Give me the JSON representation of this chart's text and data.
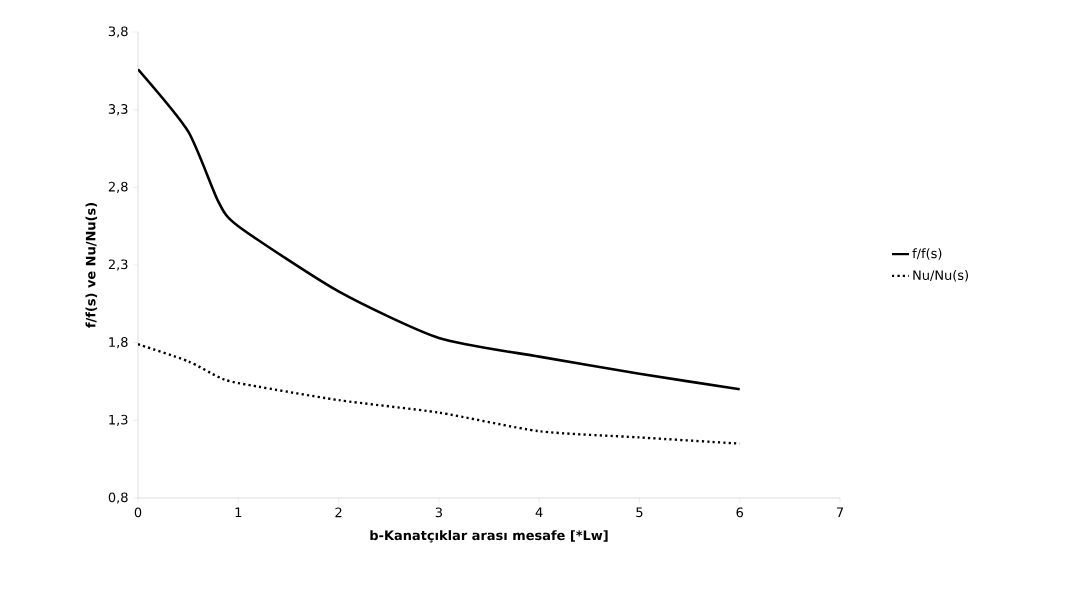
{
  "chart_data": {
    "type": "line",
    "xlabel": "b-Kanatçıklar arası mesafe [*Lw]",
    "ylabel": "f/f(s) ve Nu/Nu(s)",
    "xlim": [
      0,
      7
    ],
    "xticks": [
      0,
      1,
      2,
      3,
      4,
      5,
      6,
      7
    ],
    "ylim": [
      0.8,
      3.8
    ],
    "yticks": [
      {
        "value": 0.8,
        "label": "0,8"
      },
      {
        "value": 1.3,
        "label": "1,3"
      },
      {
        "value": 1.8,
        "label": "1,8"
      },
      {
        "value": 2.3,
        "label": "2,3"
      },
      {
        "value": 2.8,
        "label": "2,8"
      },
      {
        "value": 3.3,
        "label": "3,3"
      },
      {
        "value": 3.8,
        "label": "3,8"
      }
    ],
    "legend": "right",
    "marker": "none",
    "grid": false,
    "series": [
      {
        "name": "f/f(s)",
        "color": "#000000",
        "line_style": "solid",
        "x": [
          0,
          0.5,
          0.8,
          1,
          2,
          3,
          4,
          5,
          6
        ],
        "values": [
          3.56,
          3.16,
          2.71,
          2.55,
          2.13,
          1.83,
          1.71,
          1.6,
          1.5
        ]
      },
      {
        "name": "Nu/Nu(s)",
        "color": "#000000",
        "line_style": "dotted",
        "x": [
          0,
          0.5,
          0.8,
          1,
          2,
          3,
          4,
          5,
          6
        ],
        "values": [
          1.79,
          1.68,
          1.58,
          1.54,
          1.43,
          1.35,
          1.23,
          1.19,
          1.15
        ]
      }
    ]
  }
}
